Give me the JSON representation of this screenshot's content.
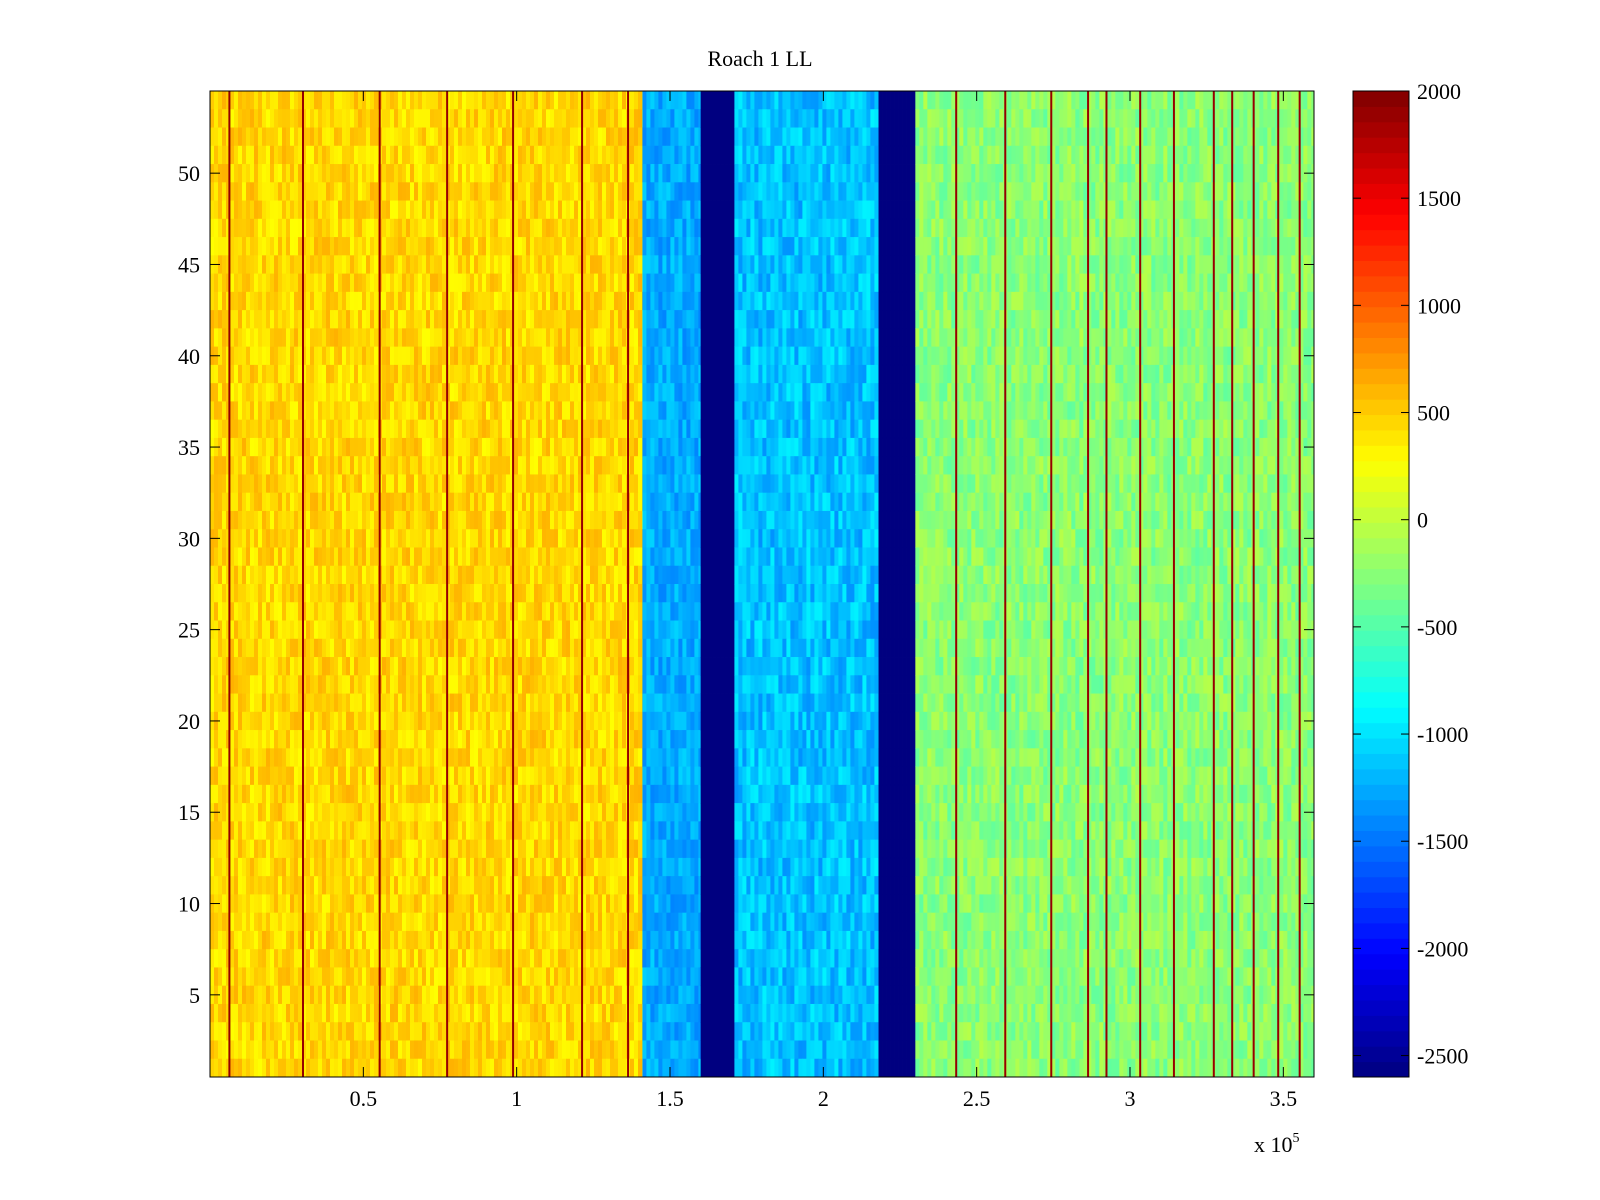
{
  "chart_data": {
    "type": "heatmap",
    "title": "Roach 1 LL",
    "x_range": [
      0,
      360000
    ],
    "y_range": [
      0.5,
      54.5
    ],
    "x_ticks": [
      0.5,
      1,
      1.5,
      2,
      2.5,
      3,
      3.5
    ],
    "x_tick_labels": [
      "0.5",
      "1",
      "1.5",
      "2",
      "2.5",
      "3",
      "3.5"
    ],
    "x_exponent_label": "x 10",
    "x_exponent_power": "5",
    "y_ticks": [
      5,
      10,
      15,
      20,
      25,
      30,
      35,
      40,
      45,
      50
    ],
    "y_tick_labels": [
      "5",
      "10",
      "15",
      "20",
      "25",
      "30",
      "35",
      "40",
      "45",
      "50"
    ],
    "rows": 54,
    "colormap": "jet",
    "color_range": [
      -2600,
      2000
    ],
    "colorbar_ticks": [
      2000,
      1500,
      1000,
      500,
      0,
      -500,
      -1000,
      -1500,
      -2000,
      -2500
    ],
    "colorbar_tick_labels": [
      "2000",
      "1500",
      "1000",
      "500",
      "0",
      "-500",
      "-1000",
      "-1500",
      "-2000",
      "-2500"
    ],
    "regions": [
      {
        "x_start": 0,
        "x_end": 141000,
        "mean_value": 450,
        "noise": 180,
        "note": "yellow-orange band with frequent red spikes"
      },
      {
        "x_start": 141000,
        "x_end": 160000,
        "mean_value": -1250,
        "noise": 180,
        "note": "cyan-blue band"
      },
      {
        "x_start": 160000,
        "x_end": 171000,
        "mean_value": -2600,
        "noise": 0,
        "note": "saturated dark blue band"
      },
      {
        "x_start": 171000,
        "x_end": 218000,
        "mean_value": -1150,
        "noise": 220,
        "note": "cyan-blue band, darker near top"
      },
      {
        "x_start": 218000,
        "x_end": 230000,
        "mean_value": -2600,
        "noise": 0,
        "note": "saturated dark blue band"
      },
      {
        "x_start": 230000,
        "x_end": 360000,
        "mean_value": -250,
        "noise": 200,
        "note": "green-yellow band with red spikes"
      }
    ],
    "spike_positions": [
      6000,
      30000,
      55000,
      77000,
      98500,
      121000,
      136000,
      243000,
      259000,
      274000,
      286000,
      292000,
      303000,
      314000,
      327000,
      333000,
      340000,
      348000,
      355000
    ]
  }
}
